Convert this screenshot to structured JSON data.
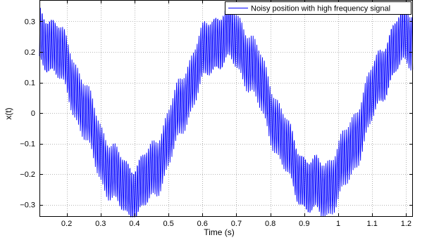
{
  "chart_data": {
    "type": "line",
    "title": "",
    "xlabel": "Time (s)",
    "ylabel": "x(t)",
    "xlim": [
      0.12,
      1.22
    ],
    "ylim": [
      -0.34,
      0.37
    ],
    "x_ticks": [
      0.2,
      0.3,
      0.4,
      0.5,
      0.6,
      0.7,
      0.8,
      0.9,
      1,
      1.1,
      1.2
    ],
    "x_tick_labels": [
      "0.2",
      "0.3",
      "0.4",
      "0.5",
      "0.6",
      "0.7",
      "0.8",
      "0.9",
      "1",
      "1.1",
      "1.2"
    ],
    "y_ticks": [
      -0.3,
      -0.2,
      -0.1,
      0,
      0.1,
      0.2,
      0.3
    ],
    "y_tick_labels": [
      "−0.3",
      "−0.2",
      "−0.1",
      "0",
      "0.1",
      "0.2",
      "0.3"
    ],
    "grid": true,
    "legend_position": "top-right",
    "series": [
      {
        "name": "Noisy position with high frequency signal",
        "color": "#0000ff",
        "model": {
          "base_amplitude": 0.25,
          "base_period": 0.55,
          "base_peak_time": 0.1175,
          "noise_amplitude": 0.09,
          "noise_period": 0.0055,
          "sample_step": 0.00092
        }
      }
    ]
  }
}
